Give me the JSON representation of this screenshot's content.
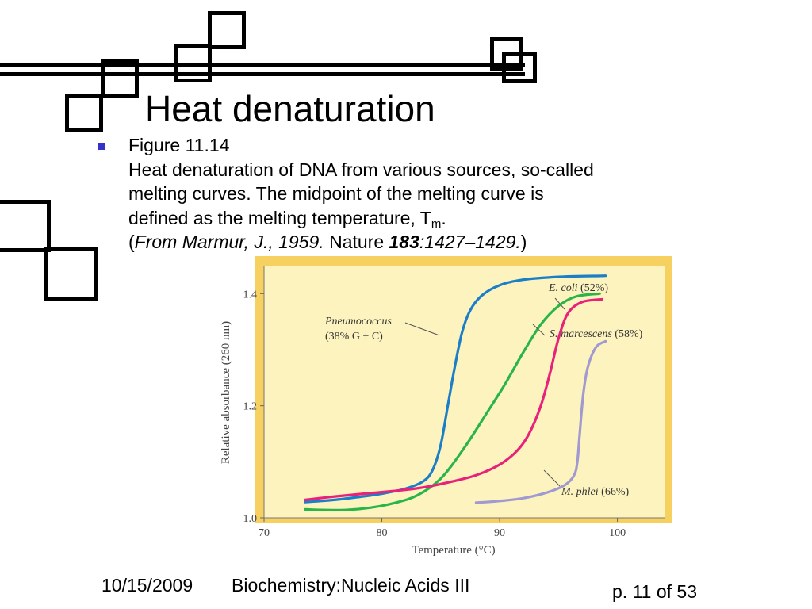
{
  "slide": {
    "title": "Heat denaturation",
    "bullet": {
      "line1": "Figure 11.14",
      "line2": "Heat denaturation of DNA from various sources, so-called",
      "line3": "melting curves. The midpoint of the melting curve is",
      "line4_main": "defined as the melting temperature, T",
      "line4_sub": "m",
      "line4_end": ".",
      "citation": {
        "open": "(",
        "author": "From Marmur, J., 1959.",
        "journal": " Nature ",
        "volume": "183",
        "pages": ":1427–1429.",
        "close": ")"
      }
    }
  },
  "footer": {
    "date": "10/15/2009",
    "course": "Biochemistry:Nucleic Acids III",
    "page": "p. 11 of 53"
  },
  "colors": {
    "red": "#dd0000",
    "green": "#00a000",
    "blue": "#3333cc",
    "yellow": "#cccc00",
    "plot_bg": "#fdf3bf",
    "plot_border": "#f7d160",
    "ecoli": "#1a7fc6",
    "pneumococcus": "#2ab54a",
    "smarcescens": "#e8227a",
    "mphlei": "#a09ad0"
  },
  "chart_data": {
    "type": "line",
    "xlabel": "Temperature (°C)",
    "ylabel": "Relative absorbance (260 nm)",
    "xlim": [
      70,
      104
    ],
    "ylim": [
      1.0,
      1.45
    ],
    "x_ticks": [
      "70",
      "80",
      "90",
      "100"
    ],
    "y_ticks": [
      "1.0",
      "1.2",
      "1.4"
    ],
    "series": [
      {
        "name": "E. coli (52%)",
        "color": "#1a7fc6",
        "points": [
          [
            73.5,
            1.028
          ],
          [
            76,
            1.032
          ],
          [
            78,
            1.037
          ],
          [
            80,
            1.043
          ],
          [
            82,
            1.052
          ],
          [
            83.5,
            1.065
          ],
          [
            84.3,
            1.085
          ],
          [
            85,
            1.13
          ],
          [
            85.6,
            1.2
          ],
          [
            86.2,
            1.27
          ],
          [
            86.8,
            1.33
          ],
          [
            87.5,
            1.37
          ],
          [
            88.5,
            1.397
          ],
          [
            90,
            1.415
          ],
          [
            92,
            1.425
          ],
          [
            95,
            1.43
          ],
          [
            99,
            1.432
          ]
        ]
      },
      {
        "name": "Pneumococcus (38% G + C)",
        "color": "#2ab54a",
        "points": [
          [
            73.5,
            1.015
          ],
          [
            75,
            1.014
          ],
          [
            77,
            1.014
          ],
          [
            79,
            1.018
          ],
          [
            81,
            1.026
          ],
          [
            83,
            1.04
          ],
          [
            85,
            1.07
          ],
          [
            87,
            1.125
          ],
          [
            89,
            1.19
          ],
          [
            90.5,
            1.24
          ],
          [
            92,
            1.295
          ],
          [
            93.5,
            1.345
          ],
          [
            95,
            1.378
          ],
          [
            96.5,
            1.395
          ],
          [
            98.5,
            1.4
          ]
        ]
      },
      {
        "name": "S. marcescens (58%)",
        "color": "#e8227a",
        "points": [
          [
            73.5,
            1.032
          ],
          [
            76,
            1.038
          ],
          [
            79,
            1.044
          ],
          [
            82,
            1.05
          ],
          [
            84,
            1.056
          ],
          [
            86,
            1.065
          ],
          [
            88,
            1.076
          ],
          [
            90,
            1.095
          ],
          [
            91.5,
            1.12
          ],
          [
            92.5,
            1.15
          ],
          [
            93.5,
            1.2
          ],
          [
            94.3,
            1.26
          ],
          [
            95,
            1.32
          ],
          [
            95.8,
            1.365
          ],
          [
            97,
            1.385
          ],
          [
            98.7,
            1.39
          ]
        ]
      },
      {
        "name": "M. phlei (66%)",
        "color": "#a09ad0",
        "points": [
          [
            88,
            1.027
          ],
          [
            90,
            1.03
          ],
          [
            92,
            1.035
          ],
          [
            94,
            1.045
          ],
          [
            95.5,
            1.058
          ],
          [
            96.3,
            1.075
          ],
          [
            96.6,
            1.1
          ],
          [
            96.8,
            1.15
          ],
          [
            97.1,
            1.22
          ],
          [
            97.5,
            1.27
          ],
          [
            98.2,
            1.305
          ],
          [
            99,
            1.315
          ]
        ]
      }
    ],
    "labels": [
      {
        "name": "E. coli",
        "rest": " (52%)"
      },
      {
        "name": "Pneumococcus",
        "rest": "(38% G + C)"
      },
      {
        "name": "S. marcescens",
        "rest": " (58%)"
      },
      {
        "name": "M. phlei",
        "rest": " (66%)"
      }
    ]
  }
}
